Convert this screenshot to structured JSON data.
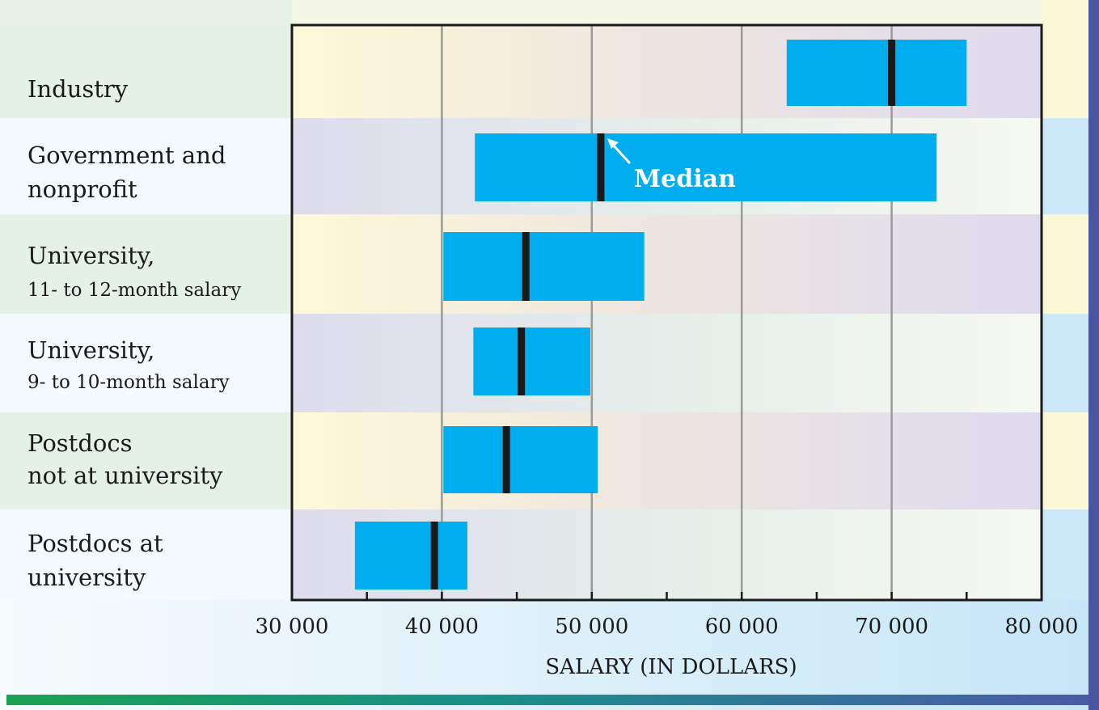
{
  "chart_data": {
    "type": "range-bar",
    "xlabel": "SALARY (IN DOLLARS)",
    "xlim": [
      30000,
      80000
    ],
    "xticks": [
      30000,
      40000,
      50000,
      60000,
      70000,
      80000
    ],
    "xtick_labels": [
      "30 000",
      "40 000",
      "50 000",
      "60 000",
      "70 000",
      "80 000"
    ],
    "gridlines": [
      40000,
      50000,
      60000,
      70000
    ],
    "annotation": "Median",
    "rows": [
      {
        "label_lines": [
          "Industry"
        ],
        "low": 63000,
        "high": 75000,
        "median": 70000
      },
      {
        "label_lines": [
          "Government and",
          "nonprofit"
        ],
        "low": 42200,
        "high": 73000,
        "median": 50600
      },
      {
        "label_lines": [
          "University,",
          "11- to 12-month salary"
        ],
        "low": 40100,
        "high": 53500,
        "median": 45600
      },
      {
        "label_lines": [
          "University,",
          "9- to 10-month salary"
        ],
        "low": 42100,
        "high": 49900,
        "median": 45300
      },
      {
        "label_lines": [
          "Postdocs",
          "not at university"
        ],
        "low": 40100,
        "high": 50400,
        "median": 44300
      },
      {
        "label_lines": [
          "Postdocs at",
          "university"
        ],
        "low": 34200,
        "high": 41700,
        "median": 39500
      }
    ]
  },
  "colors": {
    "bar": "#00aeef",
    "median": "#1a1a1a",
    "gridline": "#9a9a9a",
    "frame": "#1a1a1a"
  }
}
